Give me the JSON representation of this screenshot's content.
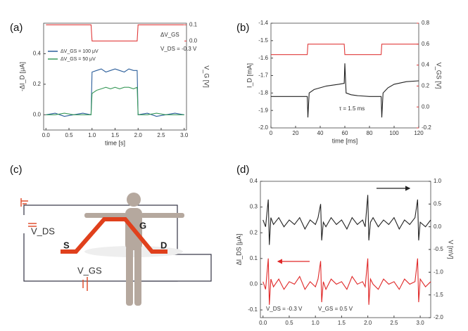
{
  "chart_data": [
    {
      "type": "line",
      "title": "(a)",
      "x_label": "time [s]",
      "y_label": "-ΔI_D [μA]",
      "y2_label": "V_G [V]",
      "annotations": [
        "ΔV_GS",
        "V_DS = -0.3 V"
      ],
      "x": [
        0,
        0.2,
        0.4,
        0.6,
        0.8,
        0.98,
        1.0,
        1.1,
        1.2,
        1.3,
        1.4,
        1.5,
        1.6,
        1.7,
        1.8,
        1.9,
        1.98,
        2.0,
        2.2,
        2.4,
        2.6,
        2.8,
        3.0
      ],
      "series": [
        {
          "name": "ΔV_GS = 100 μV",
          "color": "#2a5d9a",
          "values": [
            0.0,
            0.01,
            -0.01,
            0.0,
            0.01,
            0.0,
            0.28,
            0.29,
            0.3,
            0.28,
            0.29,
            0.3,
            0.29,
            0.28,
            0.3,
            0.29,
            0.29,
            0.0,
            0.01,
            -0.01,
            0.0,
            0.01,
            0.0
          ]
        },
        {
          "name": "ΔV_GS = 50 μV",
          "color": "#3a9a5a",
          "values": [
            0.0,
            0.0,
            0.01,
            0.0,
            0.0,
            0.0,
            0.14,
            0.16,
            0.17,
            0.18,
            0.17,
            0.18,
            0.17,
            0.18,
            0.18,
            0.17,
            0.18,
            0.0,
            0.0,
            0.01,
            0.0,
            0.0,
            0.0
          ]
        },
        {
          "color": "#e03a3a",
          "axis": "y2",
          "values": [
            0.1,
            0.1,
            0.1,
            0.1,
            0.1,
            0.1,
            0.0,
            0.0,
            0.0,
            0.0,
            0.0,
            0.0,
            0.0,
            0.0,
            0.0,
            0.0,
            0.0,
            0.1,
            0.1,
            0.1,
            0.1,
            0.1,
            0.1
          ]
        }
      ],
      "xlim": [
        -0.05,
        3.05
      ],
      "xticks": [
        {
          "value": 0,
          "label": "0.0"
        },
        0.5,
        {
          "value": 1,
          "label": "1.0"
        },
        1.5,
        {
          "value": 2,
          "label": "2.0"
        },
        2.5,
        {
          "value": 3,
          "label": "3.0"
        }
      ],
      "ylim": [
        -0.1,
        0.6
      ],
      "yticks": [
        {
          "value": 0,
          "label": "0.0"
        },
        0.2,
        0.4
      ],
      "y2lim": [
        -0.55,
        0.11
      ],
      "y2ticks": [
        {
          "value": 0,
          "label": "0.0"
        },
        0.1
      ],
      "legend": "upper left"
    },
    {
      "type": "line",
      "title": "(b)",
      "x_label": "time [ms]",
      "y_label": "I_D [mA]",
      "y2_label": "V_GS [V]",
      "annotations": [
        "τ = 1.5 ms"
      ],
      "x": [
        0,
        10,
        20,
        29,
        29.5,
        30,
        31,
        35,
        40,
        45,
        50,
        55,
        59,
        59.5,
        60,
        61,
        65,
        70,
        80,
        89,
        89.5,
        90,
        91,
        95,
        100,
        110,
        120
      ],
      "series": [
        {
          "color": "#222222",
          "values": [
            -1.82,
            -1.82,
            -1.82,
            -1.82,
            -1.82,
            -1.94,
            -1.8,
            -1.78,
            -1.77,
            -1.76,
            -1.755,
            -1.75,
            -1.745,
            -1.745,
            -1.63,
            -1.8,
            -1.81,
            -1.815,
            -1.82,
            -1.82,
            -1.82,
            -1.94,
            -1.8,
            -1.77,
            -1.75,
            -1.735,
            -1.73
          ]
        },
        {
          "color": "#e03a3a",
          "axis": "y2",
          "values": [
            0.5,
            0.5,
            0.5,
            0.5,
            0.5,
            0.6,
            0.6,
            0.6,
            0.6,
            0.6,
            0.6,
            0.6,
            0.6,
            0.6,
            0.5,
            0.5,
            0.5,
            0.5,
            0.5,
            0.5,
            0.5,
            0.6,
            0.6,
            0.6,
            0.6,
            0.6,
            0.6
          ]
        }
      ],
      "xlim": [
        0,
        120
      ],
      "xticks": [
        0,
        20,
        40,
        60,
        80,
        100,
        120
      ],
      "ylim": [
        -2.0,
        -1.4
      ],
      "yticks": [
        {
          "value": -2.0,
          "label": "-2.0"
        },
        -1.9,
        -1.8,
        -1.7,
        -1.6,
        -1.5,
        -1.4
      ],
      "y2lim": [
        -0.2,
        0.8
      ],
      "y2ticks": [
        -0.2,
        {
          "value": 0,
          "label": "0.0"
        },
        0.2,
        0.4,
        0.6,
        0.8
      ]
    },
    {
      "type": "line",
      "title": "(d)",
      "y_label": "ΔI_DS [μA]",
      "y2_label": "V [mV]",
      "annotations": [
        "V_DS = -0.3 V",
        "V_GS = 0.5 V"
      ],
      "x": [
        0,
        0.05,
        0.1,
        0.12,
        0.15,
        0.2,
        0.3,
        0.4,
        0.5,
        0.6,
        0.7,
        0.8,
        0.9,
        1.0,
        1.05,
        1.1,
        1.12,
        1.15,
        1.2,
        1.3,
        1.4,
        1.5,
        1.6,
        1.7,
        1.8,
        1.9,
        1.95,
        2.0,
        2.02,
        2.05,
        2.1,
        2.2,
        2.3,
        2.4,
        2.5,
        2.6,
        2.7,
        2.8,
        2.9,
        2.95,
        2.97,
        3.0,
        3.1,
        3.2
      ],
      "series": [
        {
          "color": "#222222",
          "axis": "y2",
          "values": [
            0.15,
            0.0,
            0.6,
            -0.4,
            0.2,
            0.05,
            0.2,
            0.0,
            0.15,
            0.05,
            0.2,
            -0.05,
            0.15,
            0.05,
            0.2,
            0.5,
            -0.3,
            0.1,
            0.0,
            0.2,
            0.05,
            0.15,
            -0.05,
            0.2,
            0.05,
            0.15,
            0.0,
            0.7,
            -0.3,
            0.1,
            0.2,
            0.0,
            0.15,
            0.05,
            0.2,
            -0.05,
            0.15,
            0.05,
            0.2,
            0.6,
            -0.3,
            0.1,
            0.0,
            0.15
          ]
        },
        {
          "color": "#e02828",
          "values": [
            0.01,
            -0.02,
            0.1,
            -0.08,
            0.02,
            -0.01,
            0.02,
            -0.02,
            0.01,
            0.0,
            0.03,
            -0.02,
            0.01,
            -0.01,
            0.02,
            0.09,
            -0.07,
            0.01,
            -0.02,
            0.02,
            0.0,
            0.01,
            -0.02,
            0.03,
            0.0,
            0.01,
            -0.01,
            0.1,
            -0.08,
            0.02,
            0.0,
            -0.02,
            0.02,
            0.0,
            0.01,
            -0.02,
            0.02,
            0.0,
            0.01,
            0.1,
            -0.07,
            0.02,
            -0.01,
            0.01
          ]
        }
      ],
      "xlim": [
        -0.05,
        3.2
      ],
      "xticks": [
        {
          "value": 0,
          "label": "0.0"
        },
        0.5,
        {
          "value": 1,
          "label": "1.0"
        },
        1.5,
        {
          "value": 2,
          "label": "2.0"
        },
        2.5,
        {
          "value": 3,
          "label": "3.0"
        }
      ],
      "ylim": [
        -0.13,
        0.4
      ],
      "yticks": [
        -0.1,
        {
          "value": 0,
          "label": "0.0"
        },
        0.1,
        0.2,
        0.3,
        0.4
      ],
      "y2lim": [
        -2.0,
        1.0
      ],
      "y2ticks": [
        {
          "value": -2.0,
          "label": "-2.0"
        },
        -1.5,
        {
          "value": -1.0,
          "label": "-1.0"
        },
        -0.5,
        {
          "value": 0,
          "label": "0.0"
        },
        0.5,
        {
          "value": 1.0,
          "label": "1.0"
        }
      ]
    }
  ],
  "diagram": {
    "title": "(c)",
    "labels": [
      "V_DS",
      "G",
      "S",
      "D",
      "V_GS"
    ]
  }
}
